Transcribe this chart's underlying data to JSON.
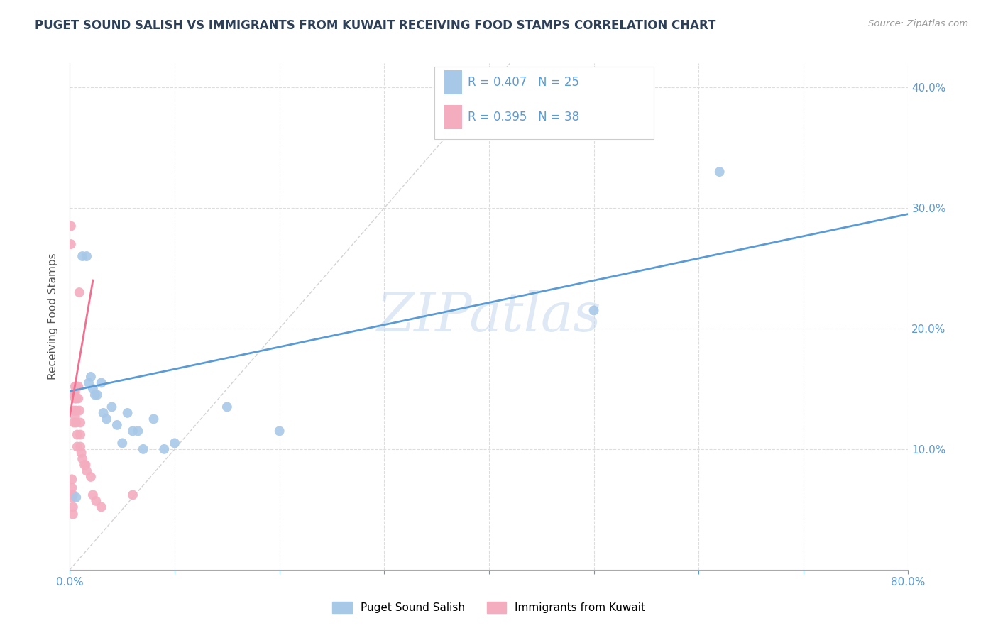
{
  "title": "PUGET SOUND SALISH VS IMMIGRANTS FROM KUWAIT RECEIVING FOOD STAMPS CORRELATION CHART",
  "source": "Source: ZipAtlas.com",
  "ylabel": "Receiving Food Stamps",
  "xlim": [
    0.0,
    0.8
  ],
  "ylim": [
    0.0,
    0.42
  ],
  "title_color": "#2E4057",
  "axis_color": "#5B9BD5",
  "watermark": "ZIPatlas",
  "legend_r1": "R = 0.407",
  "legend_n1": "N = 25",
  "legend_r2": "R = 0.395",
  "legend_n2": "N = 38",
  "blue_color": "#A8C8E8",
  "pink_color": "#F4ACBF",
  "blue_line_color": "#5B9BD5",
  "pink_line_color": "#F07090",
  "diagonal_color": "#C8C8C8",
  "series1_label": "Puget Sound Salish",
  "series2_label": "Immigrants from Kuwait",
  "blue_scatter_x": [
    0.006,
    0.012,
    0.016,
    0.018,
    0.02,
    0.022,
    0.024,
    0.026,
    0.03,
    0.032,
    0.035,
    0.04,
    0.045,
    0.05,
    0.055,
    0.06,
    0.065,
    0.07,
    0.08,
    0.09,
    0.1,
    0.15,
    0.2,
    0.5,
    0.62
  ],
  "blue_scatter_y": [
    0.06,
    0.26,
    0.26,
    0.155,
    0.16,
    0.15,
    0.145,
    0.145,
    0.155,
    0.13,
    0.125,
    0.135,
    0.12,
    0.105,
    0.13,
    0.115,
    0.115,
    0.1,
    0.125,
    0.1,
    0.105,
    0.135,
    0.115,
    0.215,
    0.33
  ],
  "pink_scatter_x": [
    0.001,
    0.001,
    0.002,
    0.002,
    0.002,
    0.003,
    0.003,
    0.003,
    0.004,
    0.004,
    0.004,
    0.005,
    0.005,
    0.005,
    0.005,
    0.006,
    0.006,
    0.006,
    0.006,
    0.007,
    0.007,
    0.008,
    0.008,
    0.009,
    0.009,
    0.01,
    0.01,
    0.01,
    0.011,
    0.012,
    0.014,
    0.015,
    0.016,
    0.02,
    0.022,
    0.025,
    0.03,
    0.06
  ],
  "pink_scatter_y": [
    0.285,
    0.27,
    0.075,
    0.068,
    0.06,
    0.062,
    0.052,
    0.046,
    0.145,
    0.132,
    0.122,
    0.152,
    0.147,
    0.142,
    0.127,
    0.152,
    0.142,
    0.132,
    0.122,
    0.112,
    0.102,
    0.152,
    0.142,
    0.23,
    0.132,
    0.122,
    0.112,
    0.102,
    0.097,
    0.092,
    0.087,
    0.087,
    0.082,
    0.077,
    0.062,
    0.057,
    0.052,
    0.062
  ],
  "blue_line_x": [
    0.0,
    0.8
  ],
  "blue_line_y": [
    0.148,
    0.295
  ],
  "pink_line_x": [
    0.0,
    0.022
  ],
  "pink_line_y": [
    0.128,
    0.24
  ],
  "grid_yticks": [
    0.1,
    0.2,
    0.3,
    0.4
  ],
  "grid_xticks": [
    0.1,
    0.2,
    0.3,
    0.4,
    0.5,
    0.6,
    0.7,
    0.8
  ],
  "right_ytick_labels": [
    "10.0%",
    "20.0%",
    "30.0%",
    "40.0%"
  ]
}
